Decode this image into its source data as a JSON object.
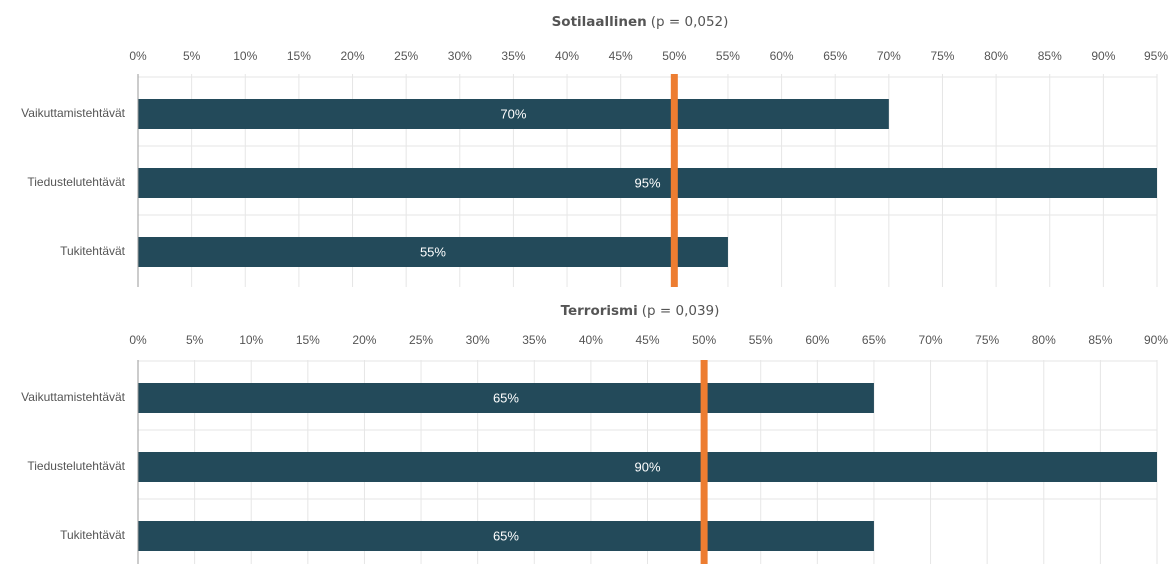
{
  "chart_data": [
    {
      "type": "barh",
      "title": "Sotilaallinen",
      "subtitle": "(p = 0,052)",
      "categories": [
        "Vaikuttamistehtävät",
        "Tiedustelutehtävät",
        "Tukitehtävät"
      ],
      "values": [
        70,
        95,
        55
      ],
      "value_labels": [
        "70%",
        "95%",
        "55%"
      ],
      "color": "#234a5a",
      "reference_line": {
        "value": 50,
        "color": "#ed7d31"
      },
      "xlim": [
        0,
        95
      ],
      "grid": true,
      "xticks": [
        {
          "value": 0,
          "label": "0%"
        },
        {
          "value": 5,
          "label": "5%"
        },
        {
          "value": 10,
          "label": "10%"
        },
        {
          "value": 15,
          "label": "15%"
        },
        {
          "value": 20,
          "label": "20%"
        },
        {
          "value": 25,
          "label": "25%"
        },
        {
          "value": 30,
          "label": "30%"
        },
        {
          "value": 35,
          "label": "35%"
        },
        {
          "value": 40,
          "label": "40%"
        },
        {
          "value": 45,
          "label": "45%"
        },
        {
          "value": 50,
          "label": "50%"
        },
        {
          "value": 55,
          "label": "55%"
        },
        {
          "value": 60,
          "label": "60%"
        },
        {
          "value": 65,
          "label": "65%"
        },
        {
          "value": 70,
          "label": "70%"
        },
        {
          "value": 75,
          "label": "75%"
        },
        {
          "value": 80,
          "label": "80%"
        },
        {
          "value": 85,
          "label": "85%"
        },
        {
          "value": 90,
          "label": "90%"
        },
        {
          "value": 95,
          "label": "95%"
        }
      ]
    },
    {
      "type": "barh",
      "title": "Terrorismi",
      "subtitle": "(p = 0,039)",
      "categories": [
        "Vaikuttamistehtävät",
        "Tiedustelutehtävät",
        "Tukitehtävät"
      ],
      "values": [
        65,
        90,
        65
      ],
      "value_labels": [
        "65%",
        "90%",
        "65%"
      ],
      "color": "#234a5a",
      "reference_line": {
        "value": 50,
        "color": "#ed7d31"
      },
      "xlim": [
        0,
        90
      ],
      "grid": true,
      "xticks": [
        {
          "value": 0,
          "label": "0%"
        },
        {
          "value": 5,
          "label": "5%"
        },
        {
          "value": 10,
          "label": "10%"
        },
        {
          "value": 15,
          "label": "15%"
        },
        {
          "value": 20,
          "label": "20%"
        },
        {
          "value": 25,
          "label": "25%"
        },
        {
          "value": 30,
          "label": "30%"
        },
        {
          "value": 35,
          "label": "35%"
        },
        {
          "value": 40,
          "label": "40%"
        },
        {
          "value": 45,
          "label": "45%"
        },
        {
          "value": 50,
          "label": "50%"
        },
        {
          "value": 55,
          "label": "55%"
        },
        {
          "value": 60,
          "label": "60%"
        },
        {
          "value": 65,
          "label": "65%"
        },
        {
          "value": 70,
          "label": "70%"
        },
        {
          "value": 75,
          "label": "75%"
        },
        {
          "value": 80,
          "label": "80%"
        },
        {
          "value": 85,
          "label": "85%"
        },
        {
          "value": 90,
          "label": "90%"
        }
      ]
    }
  ]
}
